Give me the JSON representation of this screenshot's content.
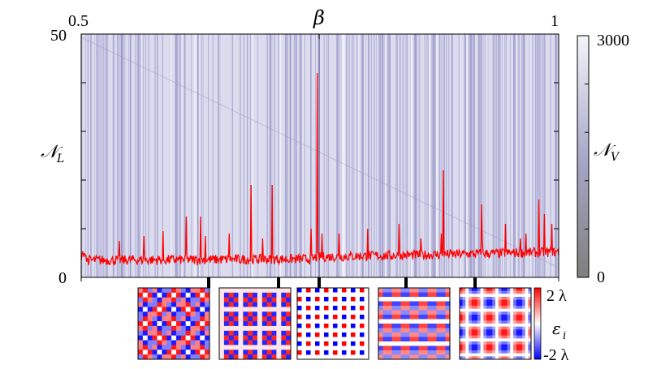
{
  "chart_data": {
    "type": "line",
    "x_axis": {
      "symbol": "β",
      "range": [
        0.5,
        1
      ],
      "tick_labels": [
        "0.5",
        "1"
      ]
    },
    "y_axis": {
      "symbol": "𝒩",
      "subscript": "L",
      "range": [
        0,
        50
      ],
      "tick_labels": [
        "0",
        "50"
      ]
    },
    "series": [
      {
        "color": "#ff0000",
        "baseline": 4,
        "spikes": [
          {
            "x": 0.54,
            "y": 7.5
          },
          {
            "x": 0.566,
            "y": 8.5
          },
          {
            "x": 0.586,
            "y": 9.5
          },
          {
            "x": 0.61,
            "y": 12.5
          },
          {
            "x": 0.63,
            "y": 8.5
          },
          {
            "x": 0.655,
            "y": 9
          },
          {
            "x": 0.69,
            "y": 8
          },
          {
            "x": 0.7,
            "y": 19
          },
          {
            "x": 0.741,
            "y": 10
          },
          {
            "x": 0.752,
            "y": 9
          },
          {
            "x": 0.77,
            "y": 9
          },
          {
            "x": 0.8,
            "y": 10
          },
          {
            "x": 0.833,
            "y": 11
          },
          {
            "x": 0.856,
            "y": 8
          },
          {
            "x": 0.877,
            "y": 9
          },
          {
            "x": 0.92,
            "y": 8
          },
          {
            "x": 0.944,
            "y": 11
          },
          {
            "x": 0.96,
            "y": 8
          },
          {
            "x": 0.966,
            "y": 9
          },
          {
            "x": 0.979,
            "y": 16
          },
          {
            "x": 0.993,
            "y": 11
          },
          {
            "x": 0.985,
            "y": 13
          }
        ],
        "peaks": [
          {
            "x": 0.625,
            "y": 12.5
          },
          {
            "x": 0.678,
            "y": 19
          },
          {
            "x": 0.747,
            "y": 42
          },
          {
            "x": 0.879,
            "y": 22
          },
          {
            "x": 0.919,
            "y": 15
          }
        ]
      }
    ],
    "grid": false,
    "colorbar": {
      "symbol": "𝒩",
      "subscript": "V",
      "range": [
        0,
        3000
      ],
      "tick_labels": [
        "0",
        "3000"
      ],
      "colors": {
        "low": "#7f7f7f",
        "high": "#f2f2f9",
        "mid": "#8f8ec2"
      }
    },
    "insets": {
      "count": 5,
      "x_positions": [
        0.76,
        0.91,
        0.997,
        1.175,
        1.318
      ],
      "colorbar": {
        "symbol": "ε",
        "subscript": "i",
        "tick_labels": [
          "2 λ",
          "-2 λ"
        ],
        "colors": {
          "pos": "#ff0000",
          "zero": "#ffffff",
          "neg": "#0000ff"
        }
      }
    }
  }
}
